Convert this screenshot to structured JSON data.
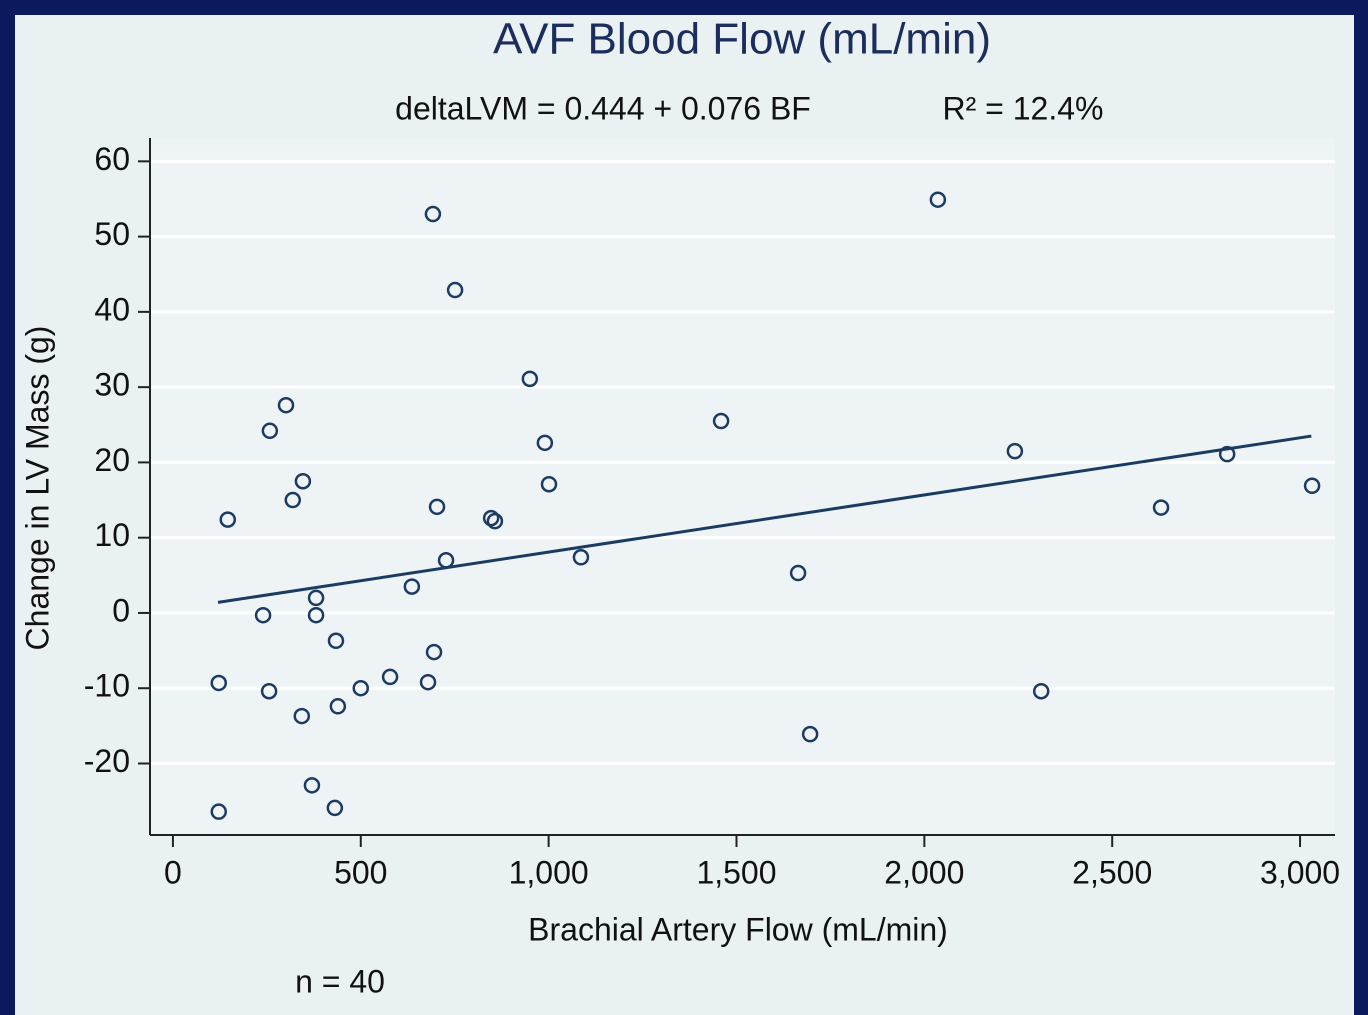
{
  "chart_data": {
    "type": "scatter",
    "title": "AVF Blood Flow (mL/min)",
    "subtitle": "deltaLVM = 0.444 + 0.076 BF",
    "annotations": [
      "R² = 12.4%",
      "n = 40"
    ],
    "x_label": "Brachial Artery Flow (mL/min)",
    "y_label": "Change in LV Mass (g)",
    "color": "#1c3b63",
    "x": [
      146,
      122,
      122,
      240,
      256,
      258,
      301,
      319,
      346,
      343,
      381,
      381,
      370,
      434,
      439,
      431,
      500,
      578,
      636,
      679,
      692,
      695,
      703,
      727,
      751,
      847,
      857,
      950,
      990,
      1001,
      1086,
      1459,
      1664,
      1696,
      2036,
      2241,
      2311,
      2630,
      2806,
      3032
    ],
    "values": [
      12.4,
      -9.3,
      -26.4,
      -0.3,
      -10.4,
      24.2,
      27.6,
      15.0,
      17.5,
      -13.7,
      2.0,
      -0.3,
      -22.9,
      -3.7,
      -12.4,
      -25.9,
      -10.0,
      -8.5,
      3.5,
      -9.2,
      53.0,
      -5.2,
      14.1,
      7.0,
      42.9,
      12.6,
      12.2,
      31.1,
      22.6,
      17.1,
      7.4,
      25.5,
      5.3,
      -16.1,
      54.9,
      21.5,
      -10.4,
      14.0,
      21.1,
      16.9
    ],
    "trend_line": {
      "x": [
        120,
        3030
      ],
      "values": [
        1.4,
        23.5
      ]
    },
    "xlim": [
      -61,
      3093
    ],
    "ylim": [
      -29.5,
      63.1
    ],
    "xticks": [
      0,
      500,
      {
        "value": 1000,
        "label": "1,000"
      },
      {
        "value": 1500,
        "label": "1,500"
      },
      {
        "value": 2000,
        "label": "2,000"
      },
      {
        "value": 2500,
        "label": "2,500"
      },
      {
        "value": 3000,
        "label": "3,000"
      }
    ],
    "yticks": [
      -20,
      -10,
      0,
      10,
      20,
      30,
      40,
      50,
      60
    ],
    "grid": true
  }
}
